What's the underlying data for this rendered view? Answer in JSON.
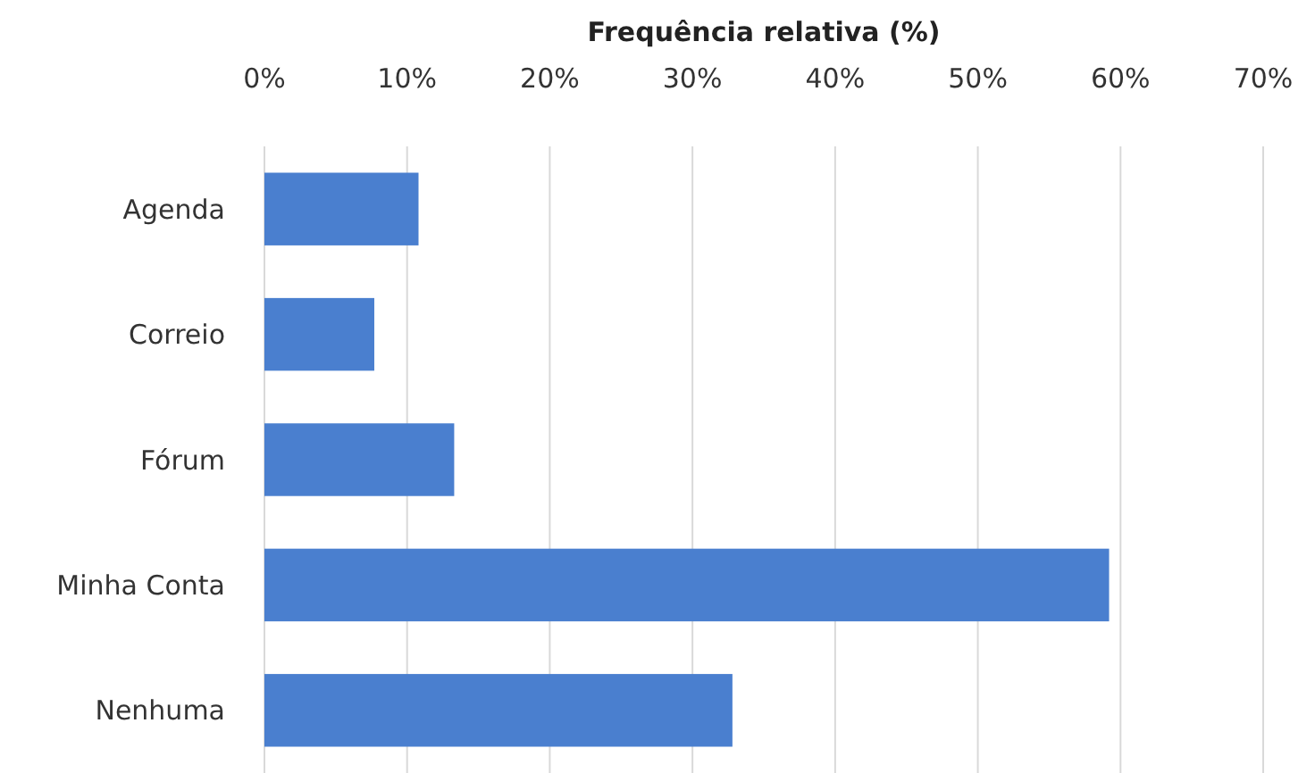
{
  "chart_data": {
    "type": "bar",
    "orientation": "horizontal",
    "title": "Frequência relativa (%)",
    "categories": [
      "Agenda",
      "Correio",
      "Fórum",
      "Minha Conta",
      "Nenhuma"
    ],
    "values": [
      10.8,
      7.7,
      13.3,
      59.2,
      32.8
    ],
    "color": "#4a7fcf",
    "xlim": [
      0,
      70
    ],
    "xticks": [
      {
        "value": 0,
        "label": "0%"
      },
      {
        "value": 10,
        "label": "10%"
      },
      {
        "value": 20,
        "label": "20%"
      },
      {
        "value": 30,
        "label": "30%"
      },
      {
        "value": 40,
        "label": "40%"
      },
      {
        "value": 50,
        "label": "50%"
      },
      {
        "value": 60,
        "label": "60%"
      },
      {
        "value": 70,
        "label": "70%"
      }
    ],
    "grid": "x"
  }
}
